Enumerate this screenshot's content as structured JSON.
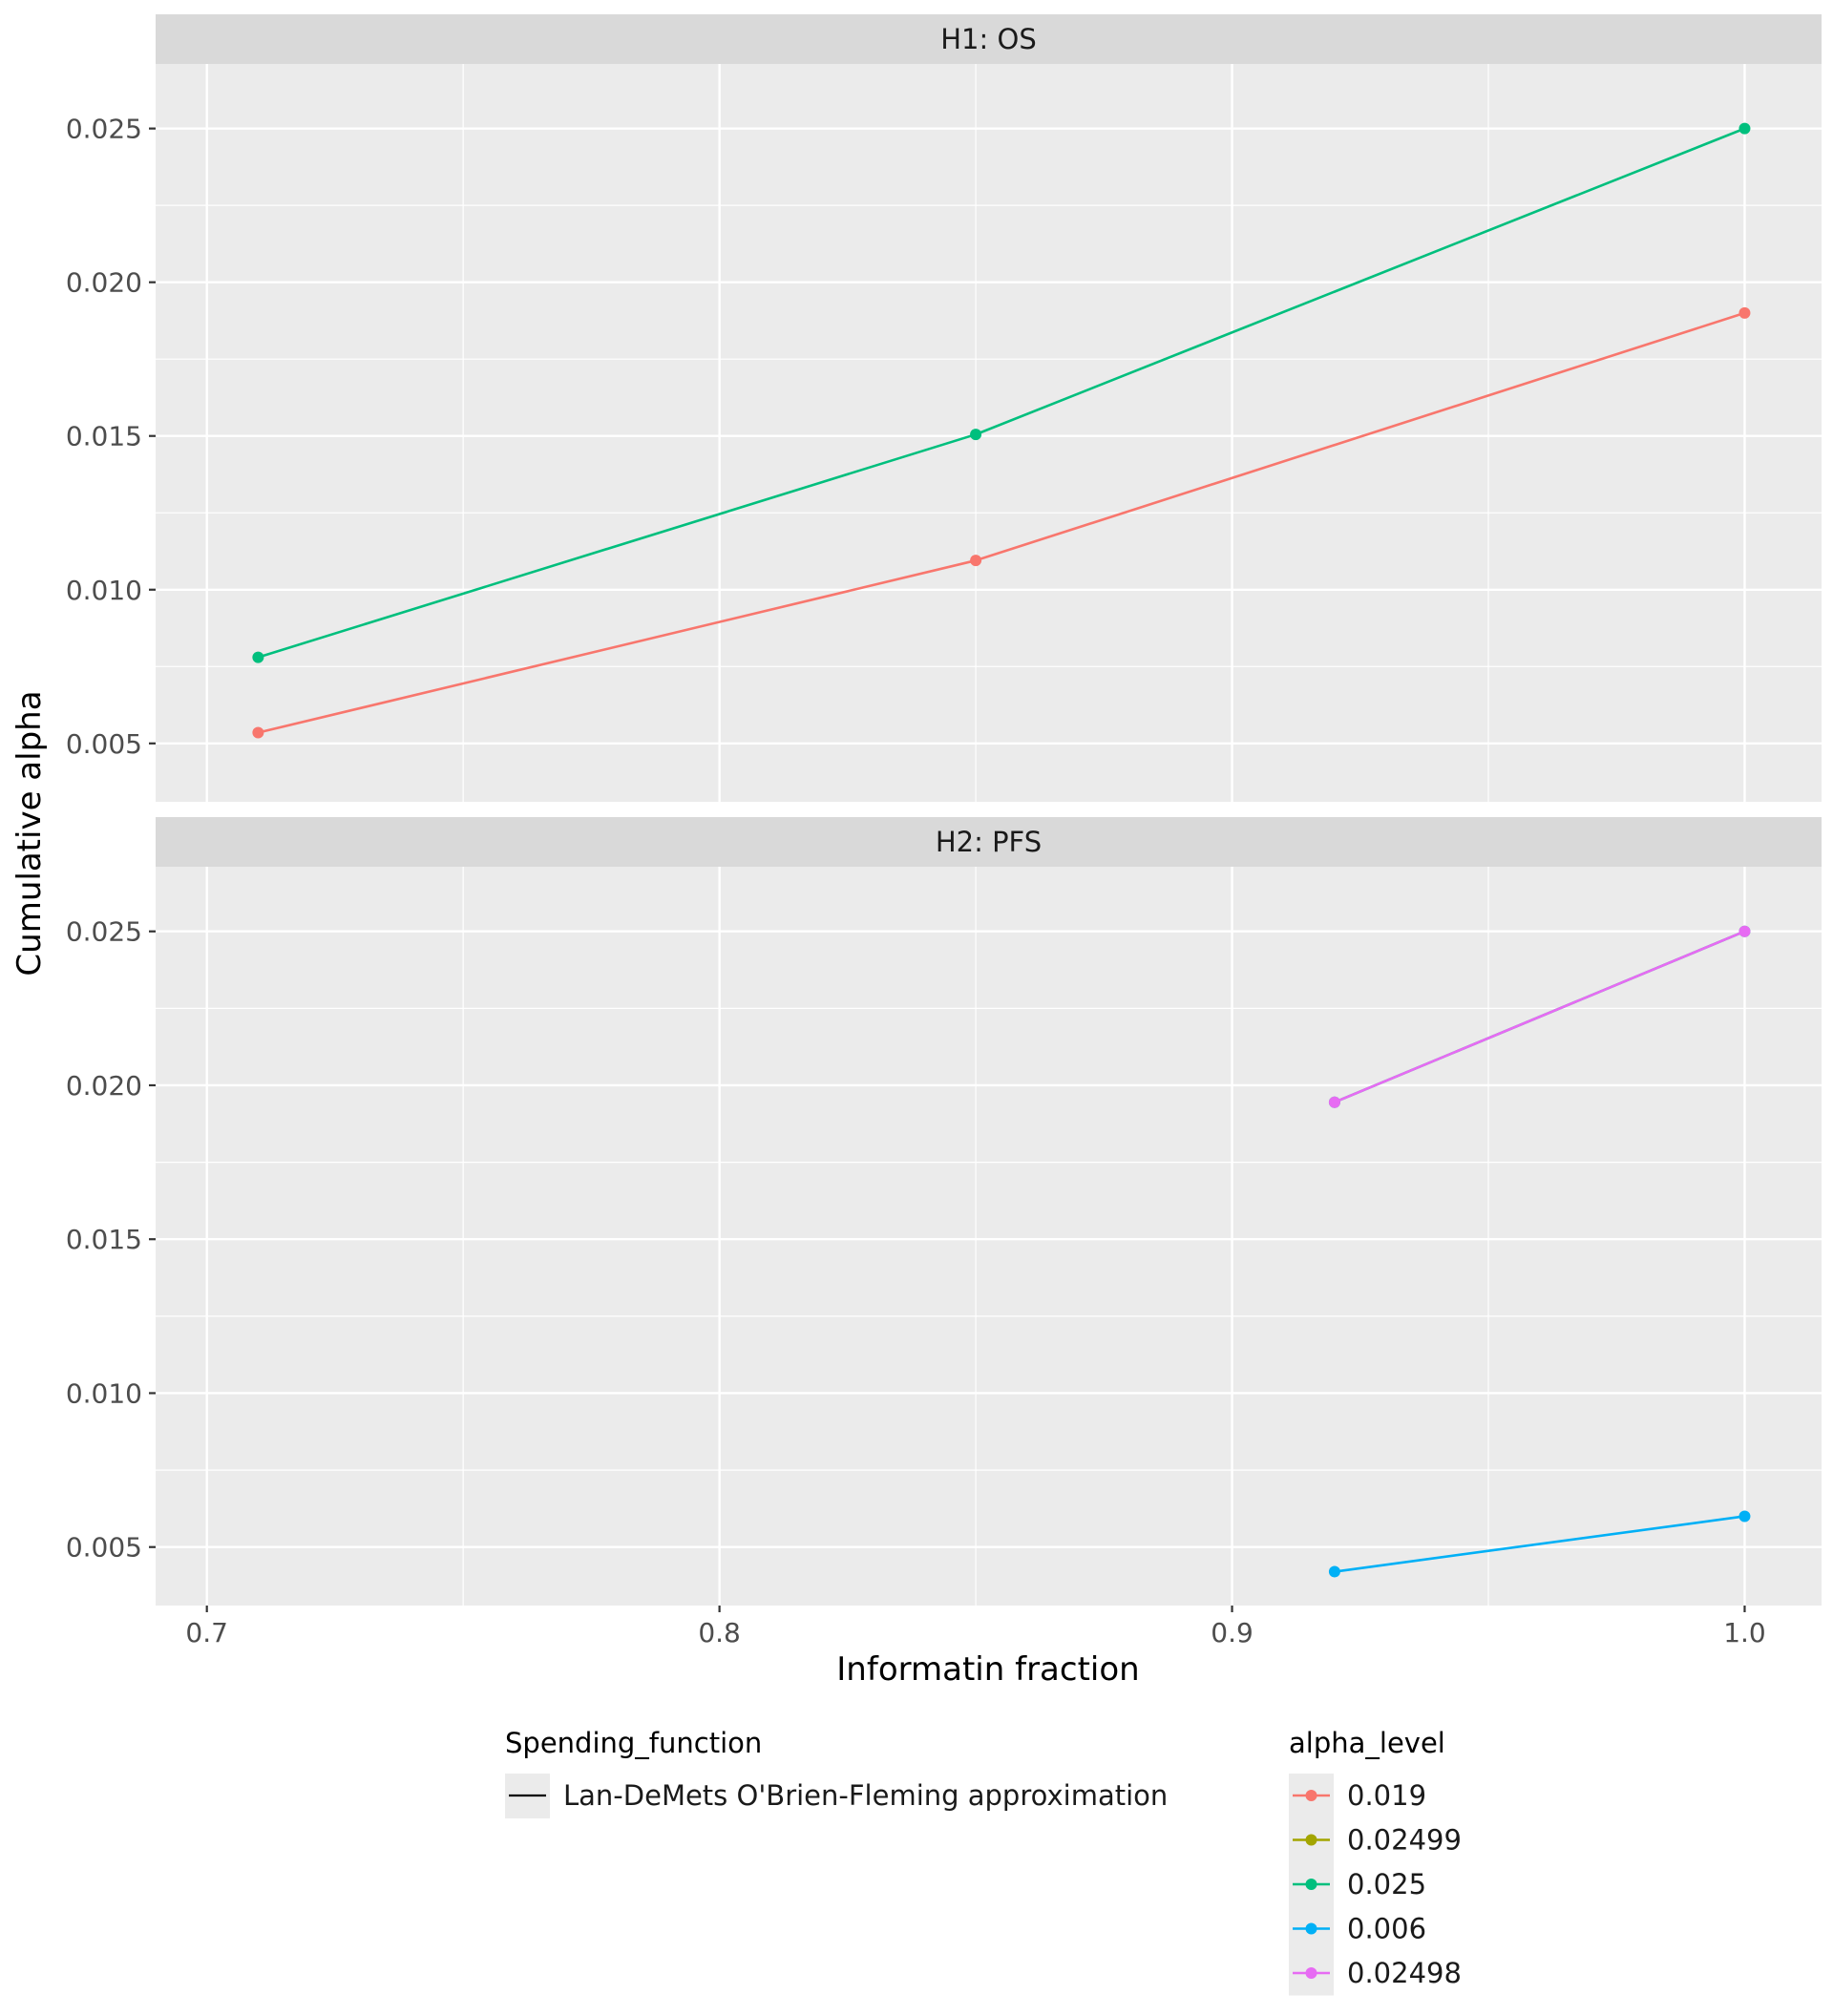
{
  "chart_data": {
    "type": "line",
    "title": "",
    "xlabel": "Informatin fraction",
    "ylabel": "Cumulative alpha",
    "xlim": [
      0.69,
      1.015
    ],
    "ylim": [
      0.0031,
      0.0271
    ],
    "x_ticks": [
      "0.7",
      "0.8",
      "0.9",
      "1.0"
    ],
    "x_tick_values": [
      0.7,
      0.8,
      0.9,
      1.0
    ],
    "y_ticks": [
      "0.005",
      "0.010",
      "0.015",
      "0.020",
      "0.025"
    ],
    "y_tick_values": [
      0.005,
      0.01,
      0.015,
      0.02,
      0.025
    ],
    "grid": true,
    "panels": [
      {
        "label": "H1: OS",
        "series": [
          {
            "alpha_level": "0.019",
            "x": [
              0.71,
              0.85,
              1.0
            ],
            "y": [
              0.00535,
              0.01095,
              0.019
            ]
          },
          {
            "alpha_level": "0.025",
            "x": [
              0.71,
              0.85,
              1.0
            ],
            "y": [
              0.0078,
              0.01505,
              0.025
            ]
          }
        ]
      },
      {
        "label": "H2: PFS",
        "series": [
          {
            "alpha_level": "0.025",
            "x": [
              0.92,
              1.0
            ],
            "y": [
              0.01945,
              0.025
            ]
          },
          {
            "alpha_level": "0.02498",
            "x": [
              0.92,
              1.0
            ],
            "y": [
              0.01945,
              0.025
            ]
          },
          {
            "alpha_level": "0.006",
            "x": [
              0.92,
              1.0
            ],
            "y": [
              0.0042,
              0.006
            ]
          }
        ]
      }
    ],
    "legends": {
      "linetype": {
        "title": "Spending_function",
        "entries": [
          "Lan-DeMets O'Brien-Fleming approximation"
        ]
      },
      "color": {
        "title": "alpha_level",
        "entries": [
          {
            "label": "0.019",
            "color": "#F8766D"
          },
          {
            "label": "0.02499",
            "color": "#A3A500"
          },
          {
            "label": "0.025",
            "color": "#00BF7D"
          },
          {
            "label": "0.006",
            "color": "#00B0F6"
          },
          {
            "label": "0.02498",
            "color": "#E76BF3"
          }
        ]
      },
      "placement": "bottom"
    }
  }
}
